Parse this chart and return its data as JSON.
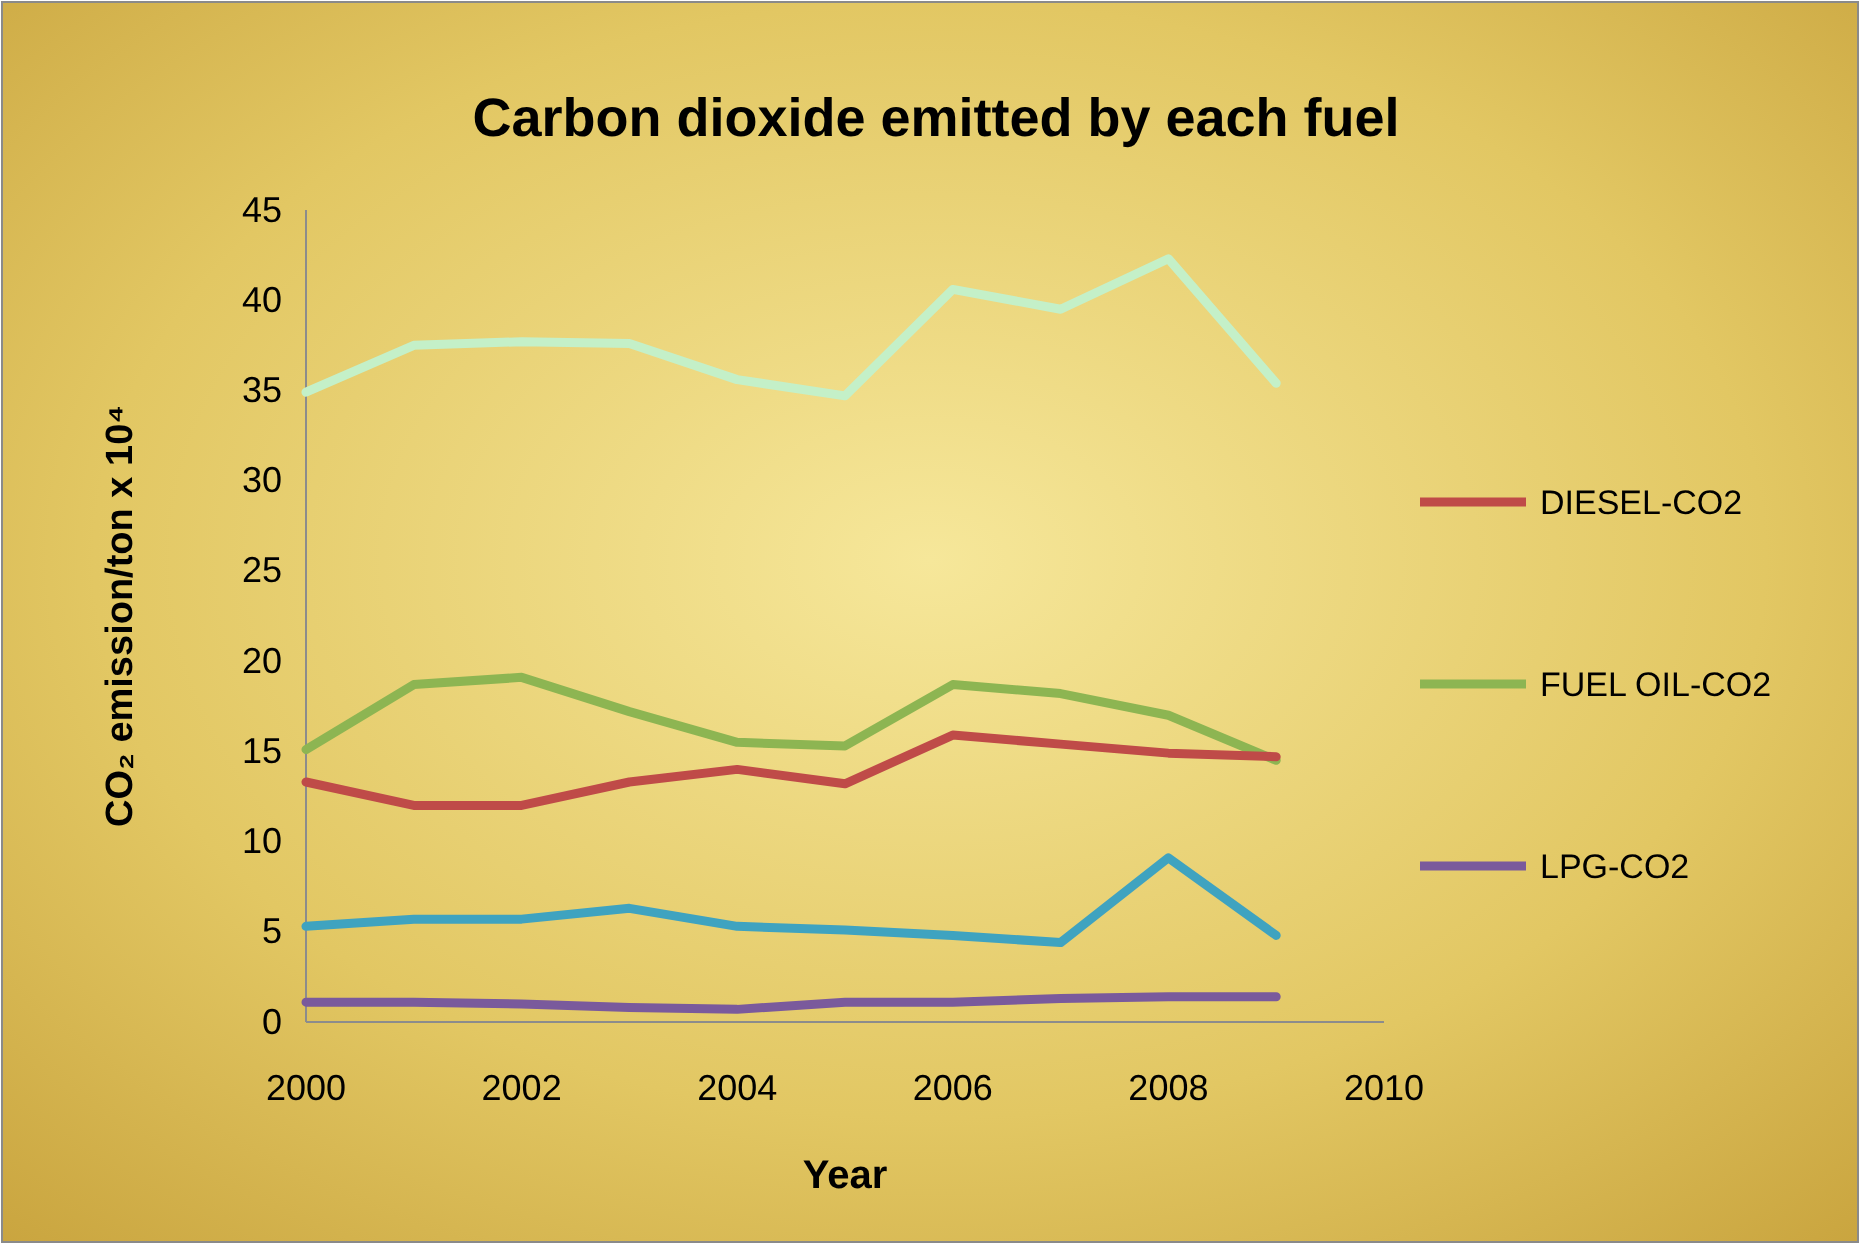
{
  "chart_data": {
    "type": "line",
    "title": "Carbon dioxide emitted by each fuel",
    "xlabel": "Year",
    "ylabel": "CO₂ emission/ton  x 10⁴",
    "x": [
      2000,
      2001,
      2002,
      2003,
      2004,
      2005,
      2006,
      2007,
      2008,
      2009
    ],
    "xlim": [
      2000,
      2010
    ],
    "xticks": [
      2000,
      2002,
      2004,
      2006,
      2008,
      2010
    ],
    "ylim": [
      0,
      45
    ],
    "yticks": [
      0,
      5,
      10,
      15,
      20,
      25,
      30,
      35,
      40,
      45
    ],
    "grid": false,
    "legend": "right",
    "marker": "none",
    "line_style": "solid",
    "series": [
      {
        "color": "#c4f0c8",
        "values": [
          34.9,
          37.5,
          37.7,
          37.6,
          35.6,
          34.7,
          40.6,
          39.5,
          42.3,
          35.4
        ]
      },
      {
        "name": "FUEL OIL-CO2",
        "color": "#8db552",
        "values": [
          15.1,
          18.7,
          19.1,
          17.2,
          15.5,
          15.3,
          18.7,
          18.2,
          17.0,
          14.5
        ]
      },
      {
        "name": "DIESEL-CO2",
        "color": "#bf4b48",
        "values": [
          13.3,
          12.0,
          12.0,
          13.3,
          14.0,
          13.2,
          15.9,
          15.4,
          14.9,
          14.7
        ]
      },
      {
        "color": "#3fa3c0",
        "values": [
          5.3,
          5.7,
          5.7,
          6.3,
          5.3,
          5.1,
          4.8,
          4.4,
          9.1,
          4.8
        ]
      },
      {
        "name": "LPG-CO2",
        "color": "#7a5a9c",
        "values": [
          1.1,
          1.1,
          1.0,
          0.8,
          0.7,
          1.1,
          1.1,
          1.3,
          1.4,
          1.4
        ]
      }
    ]
  }
}
